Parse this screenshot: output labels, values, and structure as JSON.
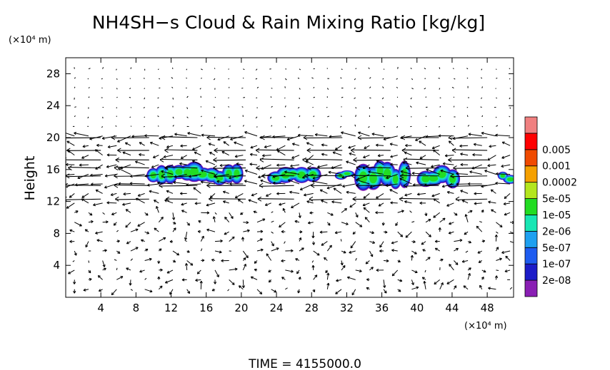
{
  "chart_data": {
    "type": "contour_vector",
    "title": "NH4SH−s Cloud & Rain Mixing Ratio [kg/kg]",
    "ylabel": "Height",
    "y_unit": "(×10⁴ m)",
    "x_unit": "(×10⁴ m)",
    "xlim": [
      0,
      51
    ],
    "ylim": [
      0,
      30
    ],
    "x_ticks": [
      4,
      8,
      12,
      16,
      20,
      24,
      28,
      32,
      36,
      40,
      44,
      48
    ],
    "y_ticks": [
      4,
      8,
      12,
      16,
      20,
      24,
      28
    ],
    "colorbar": {
      "labels": [
        "2e-08",
        "1e-07",
        "5e-07",
        "2e-06",
        "1e-05",
        "5e-05",
        "0.0002",
        "0.001",
        "0.005"
      ],
      "colors": [
        "#8a1fb4",
        "#1c1cc8",
        "#1e5cf0",
        "#1ea0f0",
        "#18e6b4",
        "#22dc22",
        "#b4e61e",
        "#f5a000",
        "#f04a00",
        "#ff0000",
        "#f08080"
      ]
    },
    "cloud_regions": [
      {
        "x": [
          9.5,
          20
        ],
        "y": [
          14.2,
          16.6
        ]
      },
      {
        "x": [
          23.5,
          28.5
        ],
        "y": [
          14.2,
          16.4
        ]
      },
      {
        "x": [
          31,
          32.5
        ],
        "y": [
          14.8,
          16.0
        ]
      },
      {
        "x": [
          33.5,
          39
        ],
        "y": [
          13.8,
          17.0
        ]
      },
      {
        "x": [
          40.5,
          44.5
        ],
        "y": [
          14.0,
          16.4
        ]
      },
      {
        "x": [
          49.5,
          51
        ],
        "y": [
          14.2,
          15.8
        ]
      }
    ],
    "jet_levels": [
      12.3,
      14.0,
      15.2,
      16.2,
      17.2,
      18.4,
      20.0
    ],
    "footer": "TIME  =  4155000.0"
  }
}
